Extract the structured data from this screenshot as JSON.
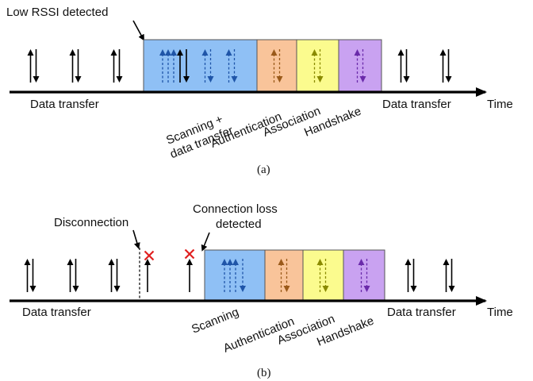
{
  "diagram_a": {
    "annotation": "Low RSSI detected",
    "left_label": "Data transfer",
    "right_label": "Data transfer",
    "time_label": "Time",
    "caption": "(a)",
    "phases": [
      {
        "label_line1": "Scanning +",
        "label_line2": "data transfer",
        "color": "#8fc0f5"
      },
      {
        "label_line1": "Authentication",
        "label_line2": "",
        "color": "#f9c49a"
      },
      {
        "label_line1": "Association",
        "label_line2": "",
        "color": "#fbfb8e"
      },
      {
        "label_line1": "Handshake",
        "label_line2": "",
        "color": "#c9a2f1"
      }
    ]
  },
  "diagram_b": {
    "disconnection_label": "Disconnection",
    "loss_label_line1": "Connection loss",
    "loss_label_line2": "detected",
    "left_label": "Data transfer",
    "right_label": "Data transfer",
    "time_label": "Time",
    "caption": "(b)",
    "phases": [
      {
        "label_line1": "Scanning",
        "color": "#8fc0f5"
      },
      {
        "label_line1": "Authentication",
        "color": "#f9c49a"
      },
      {
        "label_line1": "Association",
        "color": "#fbfb8e"
      },
      {
        "label_line1": "Handshake",
        "color": "#c9a2f1"
      }
    ]
  },
  "colors": {
    "scan_arrow": "#1f55a8",
    "auth_arrow": "#9a5a1a",
    "assoc_arrow": "#8a8a00",
    "hand_arrow": "#6a2aaa",
    "fail_mark": "#e02020"
  }
}
